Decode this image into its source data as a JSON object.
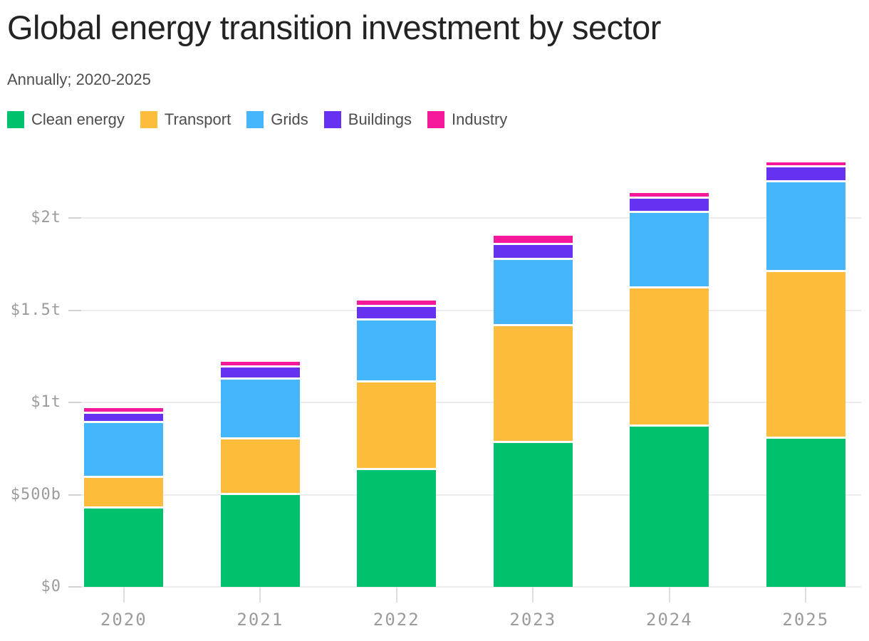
{
  "page": {
    "title": "Global energy transition investment by sector",
    "subtitle": "Annually; 2020-2025"
  },
  "colors": {
    "background": "#ffffff",
    "title_text": "#232323",
    "subtitle_text": "#4f4f4f",
    "legend_text": "#4d4d4d",
    "axis_text": "#9b9b9b",
    "gridline": "#ececec",
    "axis_tick": "#d2d2d2",
    "segment_gap": "#ffffff"
  },
  "chart_data": {
    "type": "bar",
    "stacked": true,
    "title": "Global energy transition investment by sector",
    "subtitle": "Annually; 2020-2025",
    "unit": "billion USD",
    "categories": [
      "2020",
      "2021",
      "2022",
      "2023",
      "2024",
      "2025"
    ],
    "series": [
      {
        "name": "Clean energy",
        "color": "#00C16E",
        "values": [
          425,
          500,
          635,
          780,
          870,
          805
        ]
      },
      {
        "name": "Transport",
        "color": "#FEBC3D",
        "values": [
          165,
          300,
          475,
          635,
          750,
          905
        ]
      },
      {
        "name": "Grids",
        "color": "#45B6FB",
        "values": [
          300,
          325,
          335,
          360,
          410,
          485
        ]
      },
      {
        "name": "Buildings",
        "color": "#6731F1",
        "values": [
          50,
          65,
          75,
          80,
          75,
          80
        ]
      },
      {
        "name": "Industry",
        "color": "#F6189B",
        "values": [
          30,
          30,
          35,
          50,
          30,
          30
        ]
      }
    ],
    "totals": [
      970,
      1220,
      1555,
      1905,
      2135,
      2305
    ],
    "y_axis": {
      "tick_values": [
        0,
        500,
        1000,
        1500,
        2000
      ],
      "tick_labels": [
        "$0",
        "$500b",
        "$1t",
        "$1.5t",
        "$2t"
      ],
      "range": [
        0,
        2400
      ]
    },
    "x_axis": {
      "label": "",
      "tick_labels": [
        "2020",
        "2021",
        "2022",
        "2023",
        "2024",
        "2025"
      ]
    },
    "legend_position": "top",
    "grid": true
  }
}
